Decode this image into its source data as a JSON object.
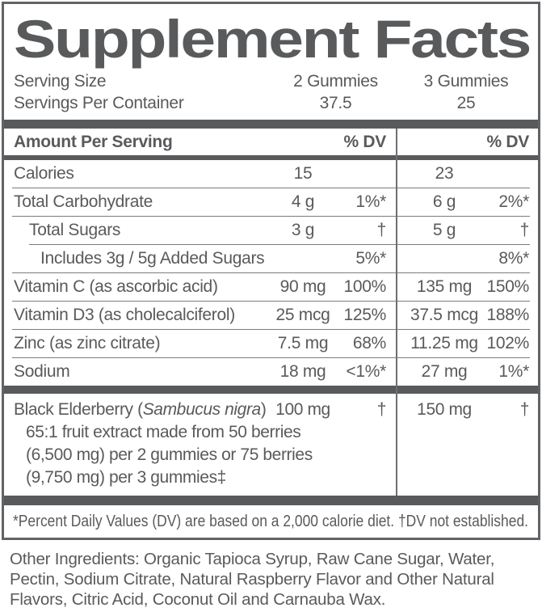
{
  "colors": {
    "ink": "#595a5c",
    "rule": "#7b7c7f",
    "divider": "#6e6f72",
    "background": "#ffffff"
  },
  "title": "Supplement Facts",
  "serving": {
    "size_label": "Serving Size",
    "container_label": "Servings Per Container",
    "serving_size_col1": "2 Gummies",
    "serving_size_col2": "3 Gummies",
    "servings_per_container_col1": "37.5",
    "servings_per_container_col2": "25"
  },
  "header": {
    "label": "Amount Per Serving",
    "dv_col1": "% DV",
    "dv_col2": "% DV"
  },
  "rows": [
    {
      "name": "Calories",
      "indent": 0,
      "amt1": "15",
      "dv1": "",
      "amt2": "23",
      "dv2": "",
      "rule_after": "full"
    },
    {
      "name": "Total Carbohydrate",
      "indent": 0,
      "amt1": "4 g",
      "dv1": "1%*",
      "amt2": "6 g",
      "dv2": "2%*",
      "rule_after": "full"
    },
    {
      "name": "Total Sugars",
      "indent": 1,
      "amt1": "3 g",
      "dv1": "†",
      "amt2": "5 g",
      "dv2": "†",
      "rule_after": "indent"
    },
    {
      "name": "Includes 3g / 5g Added Sugars",
      "indent": 2,
      "amt1": "",
      "dv1": "5%*",
      "amt2": "",
      "dv2": "8%*",
      "rule_after": "full"
    },
    {
      "name": "Vitamin C (as ascorbic acid)",
      "indent": 0,
      "amt1": "90 mg",
      "dv1": "100%",
      "amt2": "135 mg",
      "dv2": "150%",
      "rule_after": "full"
    },
    {
      "name": "Vitamin D3 (as cholecalciferol)",
      "indent": 0,
      "amt1": "25 mcg",
      "dv1": "125%",
      "amt2": "37.5 mcg",
      "dv2": "188%",
      "rule_after": "full"
    },
    {
      "name": "Zinc (as zinc citrate)",
      "indent": 0,
      "amt1": "7.5 mg",
      "dv1": "68%",
      "amt2": "11.25 mg",
      "dv2": "102%",
      "rule_after": "full"
    },
    {
      "name": "Sodium",
      "indent": 0,
      "amt1": "18 mg",
      "dv1": "<1%*",
      "amt2": "27 mg",
      "dv2": "1%*",
      "rule_after": "none"
    }
  ],
  "botanical": {
    "name_prefix": "Black Elderberry (",
    "name_latin": "Sambucus nigra",
    "name_suffix": ")",
    "desc_lines": [
      "65:1 fruit extract made from 50 berries",
      "(6,500 mg) per 2 gummies or 75 berries",
      "(9,750 mg) per 3 gummies‡"
    ],
    "amt1": "100 mg",
    "dv1": "†",
    "amt2": "150 mg",
    "dv2": "†"
  },
  "footnote": "*Percent Daily Values (DV) are based on a 2,000 calorie diet. †DV not established.",
  "other_ingredients": "Other Ingredients: Organic Tapioca Syrup, Raw Cane Sugar, Water, Pectin, Sodium Citrate, Natural Raspberry Flavor and Other Natural Flavors, Citric Acid, Coconut Oil and Carnauba Wax."
}
